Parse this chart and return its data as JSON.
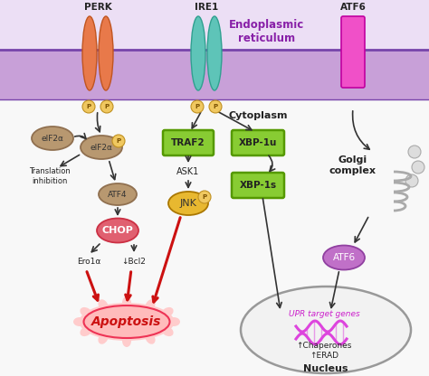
{
  "bg_color": "#f8f8f8",
  "er_membrane_color": "#c8a0d8",
  "er_lumen_color": "#ecdff5",
  "cytoplasm_label": "Cytoplasm",
  "er_label": "Endoplasmic\nreticulum",
  "golgi_label": "Golgi\ncomplex",
  "nucleus_label": "Nucleus",
  "apoptosis_label": "Apoptosis",
  "upr_label": "UPR target genes",
  "chaperones_label": "↑Chaperones\n↑ERAD",
  "perk_label": "PERK",
  "ire1_label": "IRE1",
  "atf6_label": "ATF6",
  "protein_color_perk": "#e8794a",
  "protein_color_ire1": "#5ec4b8",
  "protein_color_atf6": "#f050c8",
  "node_green": "#88cc33",
  "node_tan": "#b89870",
  "node_yellow": "#e8b830",
  "node_purple": "#c070c8",
  "arrow_black": "#333333",
  "arrow_red": "#cc1111",
  "text_purple": "#8820a8",
  "text_black": "#222222",
  "phospho_fill": "#f0c860",
  "phospho_edge": "#c09020",
  "apop_fill": "#ffb0b8",
  "apop_edge": "#ee3355",
  "chop_fill": "#e06070",
  "chop_edge": "#cc3044"
}
